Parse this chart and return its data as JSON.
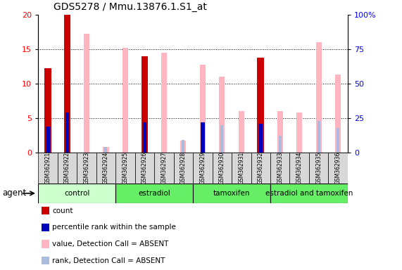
{
  "title": "GDS5278 / Mmu.13876.1.S1_at",
  "samples": [
    "GSM362921",
    "GSM362922",
    "GSM362923",
    "GSM362924",
    "GSM362925",
    "GSM362926",
    "GSM362927",
    "GSM362928",
    "GSM362929",
    "GSM362930",
    "GSM362931",
    "GSM362932",
    "GSM362933",
    "GSM362934",
    "GSM362935",
    "GSM362936"
  ],
  "count_values": [
    12.2,
    20.0,
    null,
    null,
    null,
    14.0,
    null,
    null,
    null,
    null,
    null,
    13.8,
    null,
    null,
    null,
    null
  ],
  "rank_values": [
    19,
    29,
    null,
    null,
    null,
    22,
    null,
    null,
    22,
    null,
    null,
    21,
    null,
    null,
    null,
    null
  ],
  "absent_value_values": [
    null,
    null,
    17.3,
    0.8,
    15.2,
    null,
    14.5,
    1.7,
    12.8,
    11.0,
    6.0,
    null,
    6.0,
    5.8,
    16.0,
    11.3
  ],
  "absent_rank_values": [
    null,
    null,
    null,
    4.0,
    null,
    null,
    null,
    9.0,
    null,
    20.0,
    null,
    null,
    12.0,
    null,
    23.0,
    18.0
  ],
  "groups": [
    {
      "label": "control",
      "start": 0,
      "end": 3
    },
    {
      "label": "estradiol",
      "start": 4,
      "end": 7
    },
    {
      "label": "tamoxifen",
      "start": 8,
      "end": 11
    },
    {
      "label": "estradiol and tamoxifen",
      "start": 12,
      "end": 15
    }
  ],
  "ylim_left": [
    0,
    20
  ],
  "ylim_right": [
    0,
    100
  ],
  "yticks_left": [
    0,
    5,
    10,
    15,
    20
  ],
  "yticks_right": [
    0,
    25,
    50,
    75,
    100
  ],
  "ytick_labels_right": [
    "0",
    "25",
    "50",
    "75",
    "100%"
  ],
  "count_color": "#CC0000",
  "rank_color": "#0000BB",
  "absent_value_color": "#FFB6C1",
  "absent_rank_color": "#AABBDD",
  "count_bar_width": 0.35,
  "rank_bar_width": 0.2,
  "absent_bar_width": 0.3,
  "absent_rank_bar_width": 0.15,
  "grid_color": "black",
  "plot_bg": "#FFFFFF",
  "tick_bg": "#D8D8D8",
  "group_bg_light": "#CCFFCC",
  "group_bg_dark": "#66EE66",
  "agent_label": "agent",
  "legend_items": [
    {
      "label": "count",
      "color": "#CC0000"
    },
    {
      "label": "percentile rank within the sample",
      "color": "#0000BB"
    },
    {
      "label": "value, Detection Call = ABSENT",
      "color": "#FFB6C1"
    },
    {
      "label": "rank, Detection Call = ABSENT",
      "color": "#AABBDD"
    }
  ]
}
